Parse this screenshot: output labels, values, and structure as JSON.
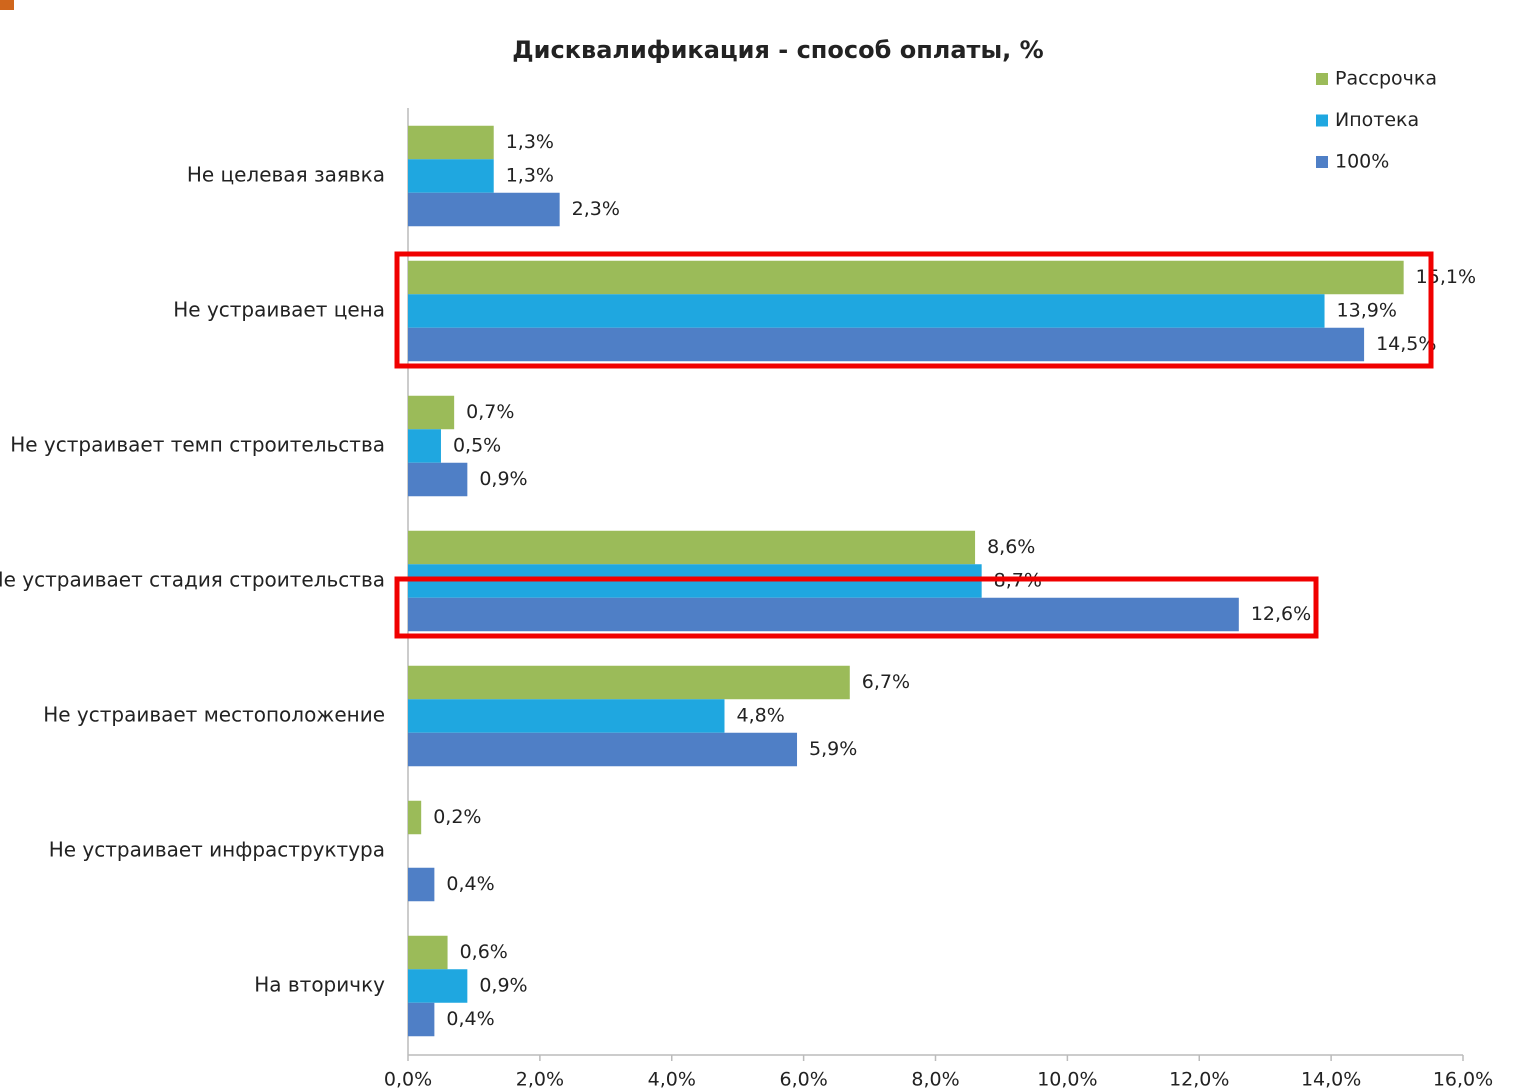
{
  "chart_data": {
    "type": "hbar",
    "title": "Дисквалификация - способ оплаты, %",
    "categories": [
      "Не целевая заявка",
      "Не устраивает цена",
      "Не устраивает темп строительства",
      "Не устраивает стадия строительства",
      "Не устраивает местоположение",
      "Не устраивает инфраструктура",
      "На вторичку"
    ],
    "series": [
      {
        "name": "Рассрочка",
        "color": "#9bbb59",
        "values": [
          1.3,
          15.1,
          0.7,
          8.6,
          6.7,
          0.2,
          0.6
        ],
        "value_labels": [
          "1,3%",
          "15,1%",
          "0,7%",
          "8,6%",
          "6,7%",
          "0,2%",
          "0,6%"
        ]
      },
      {
        "name": "Ипотека",
        "color": "#1fa7e0",
        "values": [
          1.3,
          13.9,
          0.5,
          8.7,
          4.8,
          null,
          0.9
        ],
        "value_labels": [
          "1,3%",
          "13,9%",
          "0,5%",
          "8,7%",
          "4,8%",
          null,
          "0,9%"
        ]
      },
      {
        "name": "100%",
        "color": "#4f7fc6",
        "values": [
          2.3,
          14.5,
          0.9,
          12.6,
          5.9,
          0.4,
          0.4
        ],
        "value_labels": [
          "2,3%",
          "14,5%",
          "0,9%",
          "12,6%",
          "5,9%",
          "0,4%",
          "0,4%"
        ]
      }
    ],
    "xlim": [
      0,
      16
    ],
    "xticks": [
      {
        "value": 0,
        "label": "0,0%"
      },
      {
        "value": 2,
        "label": "2,0%"
      },
      {
        "value": 4,
        "label": "4,0%"
      },
      {
        "value": 6,
        "label": "6,0%"
      },
      {
        "value": 8,
        "label": "8,0%"
      },
      {
        "value": 10,
        "label": "10,0%"
      },
      {
        "value": 12,
        "label": "12,0%"
      },
      {
        "value": 14,
        "label": "14,0%"
      },
      {
        "value": 16,
        "label": "16,0%"
      }
    ],
    "legend": "top-right"
  }
}
